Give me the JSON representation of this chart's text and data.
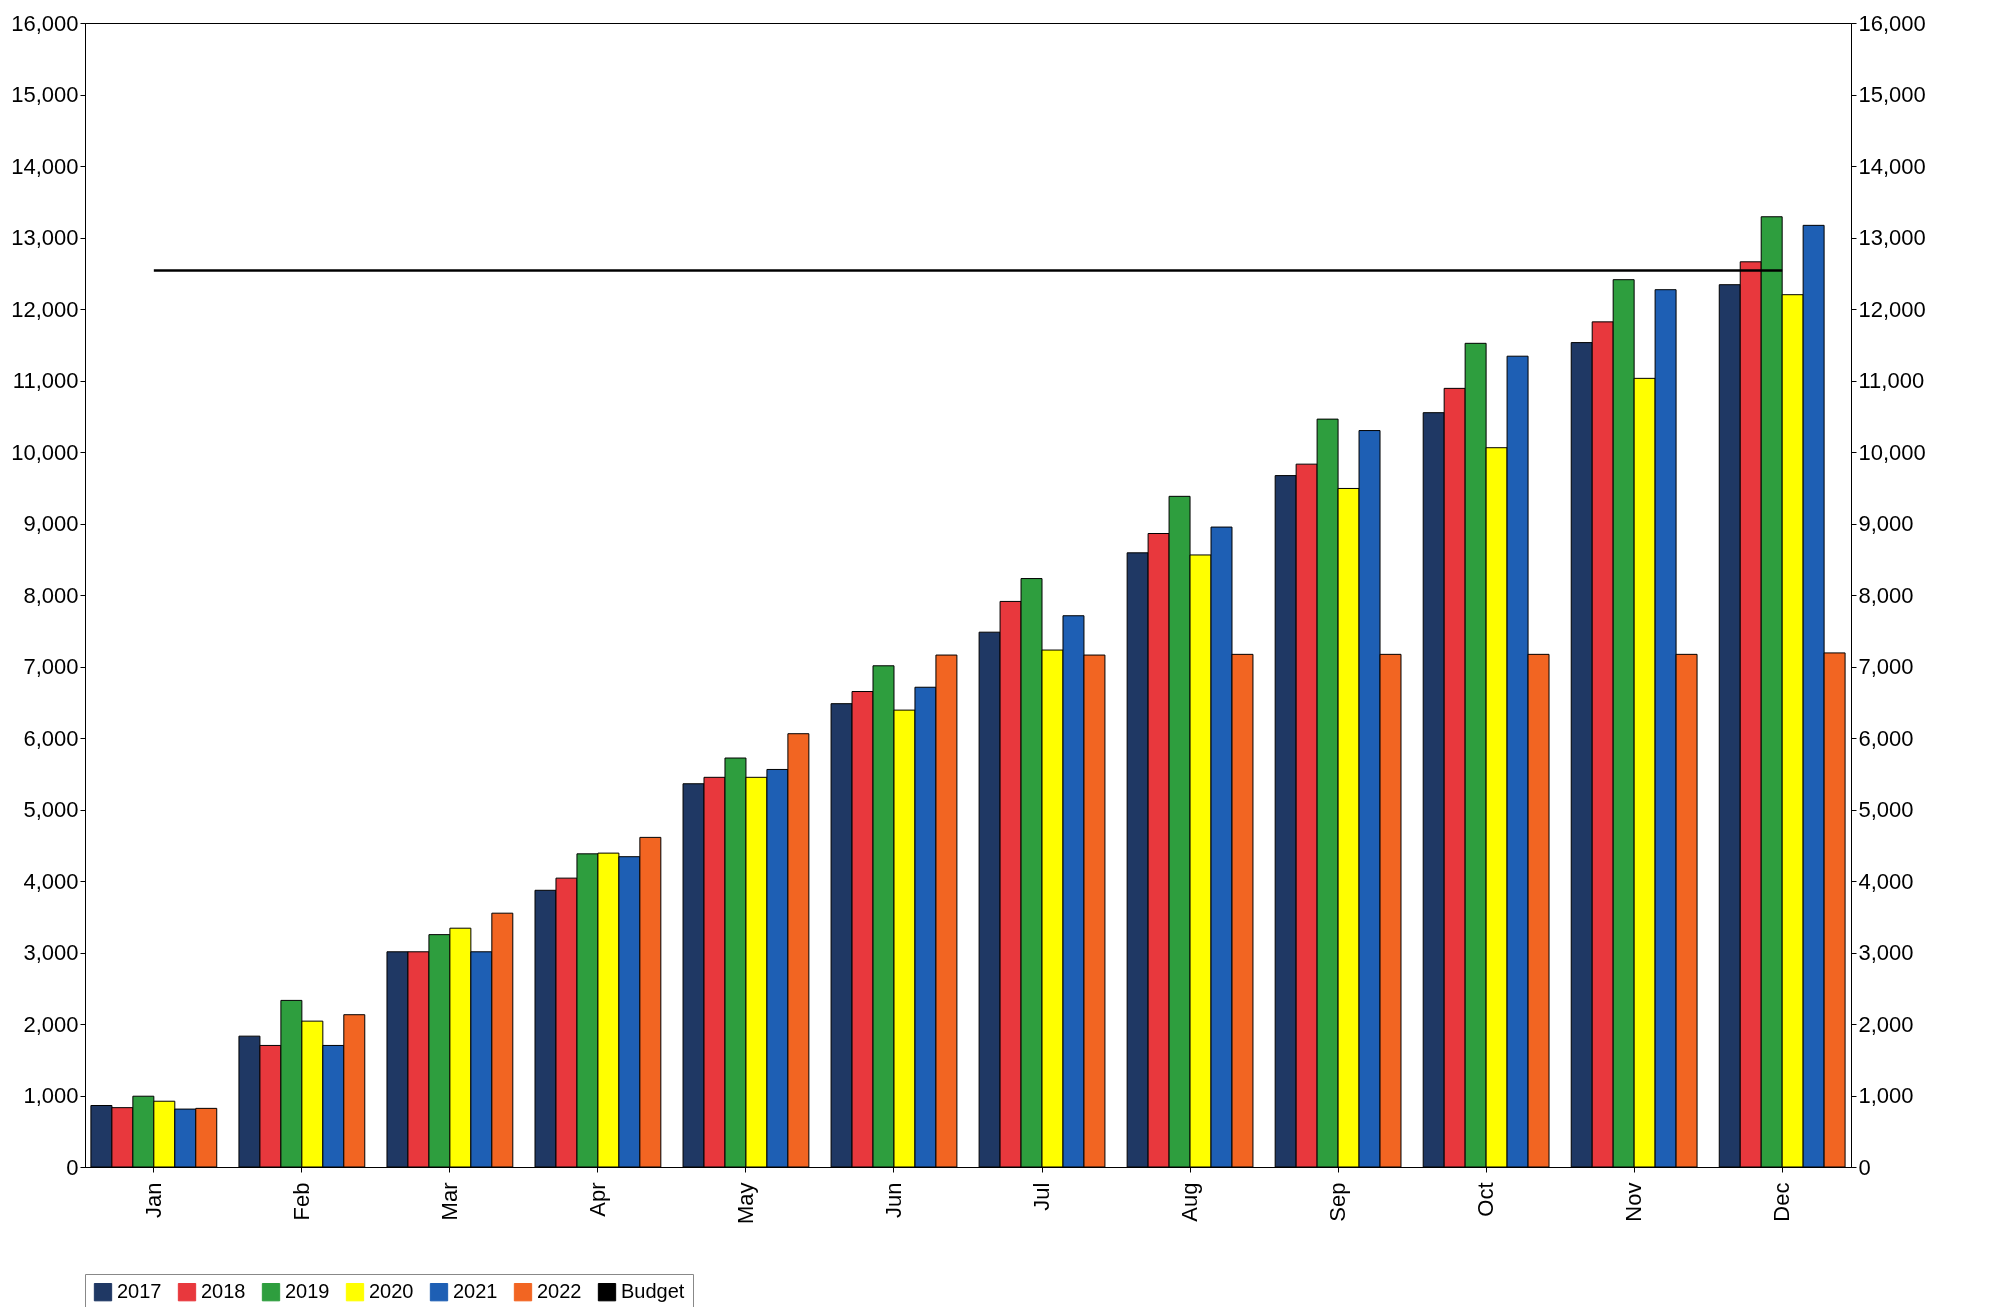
{
  "chart_data": {
    "type": "bar",
    "categories": [
      "Jan",
      "Feb",
      "Mar",
      "Apr",
      "May",
      "Jun",
      "Jul",
      "Aug",
      "Sep",
      "Oct",
      "Nov",
      "Dec"
    ],
    "series": [
      {
        "name": "2017",
        "color": "#1f3864",
        "values": [
          860,
          1830,
          3010,
          3870,
          5360,
          6480,
          7480,
          8590,
          9670,
          10550,
          11530,
          12340
        ]
      },
      {
        "name": "2018",
        "color": "#e8383d",
        "values": [
          830,
          1700,
          3010,
          4040,
          5450,
          6650,
          7910,
          8860,
          9830,
          10890,
          11820,
          12660
        ]
      },
      {
        "name": "2019",
        "color": "#2e9e3e",
        "values": [
          990,
          2330,
          3250,
          4380,
          5720,
          7010,
          8230,
          9380,
          10460,
          11520,
          12410,
          13290
        ]
      },
      {
        "name": "2020",
        "color": "#ffff00",
        "values": [
          920,
          2040,
          3340,
          4390,
          5450,
          6390,
          7230,
          8560,
          9490,
          10060,
          11030,
          12200
        ]
      },
      {
        "name": "2021",
        "color": "#1e5fb4",
        "values": [
          810,
          1700,
          3010,
          4340,
          5560,
          6710,
          7710,
          8950,
          10300,
          11340,
          12270,
          13170
        ]
      },
      {
        "name": "2022",
        "color": "#f26522",
        "values": [
          820,
          2130,
          3550,
          4610,
          6060,
          7160,
          7160,
          7170,
          7170,
          7170,
          7170,
          7190
        ]
      },
      {
        "name": "Budget",
        "type": "line",
        "color": "#000000",
        "values": [
          12540,
          12540,
          12540,
          12540,
          12540,
          12540,
          12540,
          12540,
          12540,
          12540,
          12540,
          12540
        ]
      }
    ],
    "ylim": [
      0,
      16000
    ],
    "yticks": [
      0,
      {
        "value": 1000,
        "label": "1,000"
      },
      {
        "value": 2000,
        "label": "2,000"
      },
      {
        "value": 3000,
        "label": "3,000"
      },
      {
        "value": 4000,
        "label": "4,000"
      },
      {
        "value": 5000,
        "label": "5,000"
      },
      {
        "value": 6000,
        "label": "6,000"
      },
      {
        "value": 7000,
        "label": "7,000"
      },
      {
        "value": 8000,
        "label": "8,000"
      },
      {
        "value": 9000,
        "label": "9,000"
      },
      {
        "value": 10000,
        "label": "10,000"
      },
      {
        "value": 11000,
        "label": "11,000"
      },
      {
        "value": 12000,
        "label": "12,000"
      },
      {
        "value": 13000,
        "label": "13,000"
      },
      {
        "value": 14000,
        "label": "14,000"
      },
      {
        "value": 15000,
        "label": "15,000"
      },
      {
        "value": 16000,
        "label": "16,000"
      }
    ],
    "y2lim": [
      0,
      16000
    ],
    "y2ticks": [
      0,
      {
        "value": 1000,
        "label": "1,000"
      },
      {
        "value": 2000,
        "label": "2,000"
      },
      {
        "value": 3000,
        "label": "3,000"
      },
      {
        "value": 4000,
        "label": "4,000"
      },
      {
        "value": 5000,
        "label": "5,000"
      },
      {
        "value": 6000,
        "label": "6,000"
      },
      {
        "value": 7000,
        "label": "7,000"
      },
      {
        "value": 8000,
        "label": "8,000"
      },
      {
        "value": 9000,
        "label": "9,000"
      },
      {
        "value": 10000,
        "label": "10,000"
      },
      {
        "value": 11000,
        "label": "11,000"
      },
      {
        "value": 12000,
        "label": "12,000"
      },
      {
        "value": 13000,
        "label": "13,000"
      },
      {
        "value": 14000,
        "label": "14,000"
      },
      {
        "value": 15000,
        "label": "15,000"
      },
      {
        "value": 16000,
        "label": "16,000"
      }
    ],
    "grid": false,
    "legend": "bottom"
  }
}
